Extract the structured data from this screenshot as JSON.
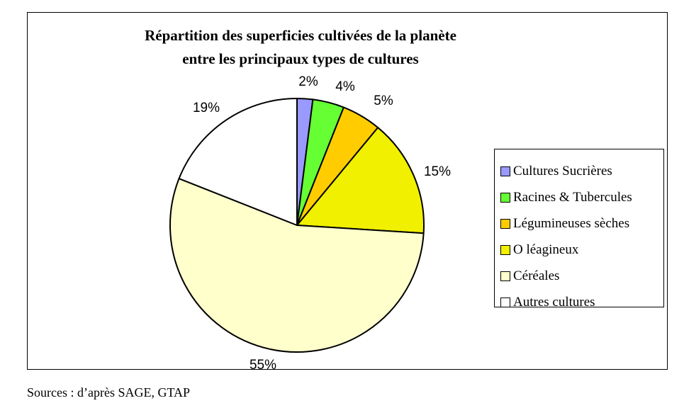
{
  "chart_data": {
    "type": "pie",
    "title": [
      "Répartition des superficies cultivées de la planète",
      "entre les principaux types de cultures"
    ],
    "legend_position": "right",
    "slices": [
      {
        "label": "Cultures Sucrières",
        "value": 2,
        "value_label": "2%",
        "color": "#9999ff"
      },
      {
        "label": "Racines & Tubercules",
        "value": 4,
        "value_label": "4%",
        "color": "#66ff33"
      },
      {
        "label": "Légumineuses sèches",
        "value": 5,
        "value_label": "5%",
        "color": "#ffcc00"
      },
      {
        "label": "Oléagineux",
        "value": 15,
        "value_label": "15%",
        "color": "#f0f000"
      },
      {
        "label": "Céréales",
        "value": 55,
        "value_label": "55%",
        "color": "#ffffcc"
      },
      {
        "label": "Autres cultures",
        "value": 19,
        "value_label": "19%",
        "color": "#ffffff"
      }
    ]
  },
  "legend_labels": [
    "Cultures Sucrières",
    "Racines & Tubercules",
    "Légumineuses sèches",
    "O léagineux",
    "Céréales",
    "Autres cultures"
  ],
  "source": "Sources : d’après SAGE, GTAP"
}
